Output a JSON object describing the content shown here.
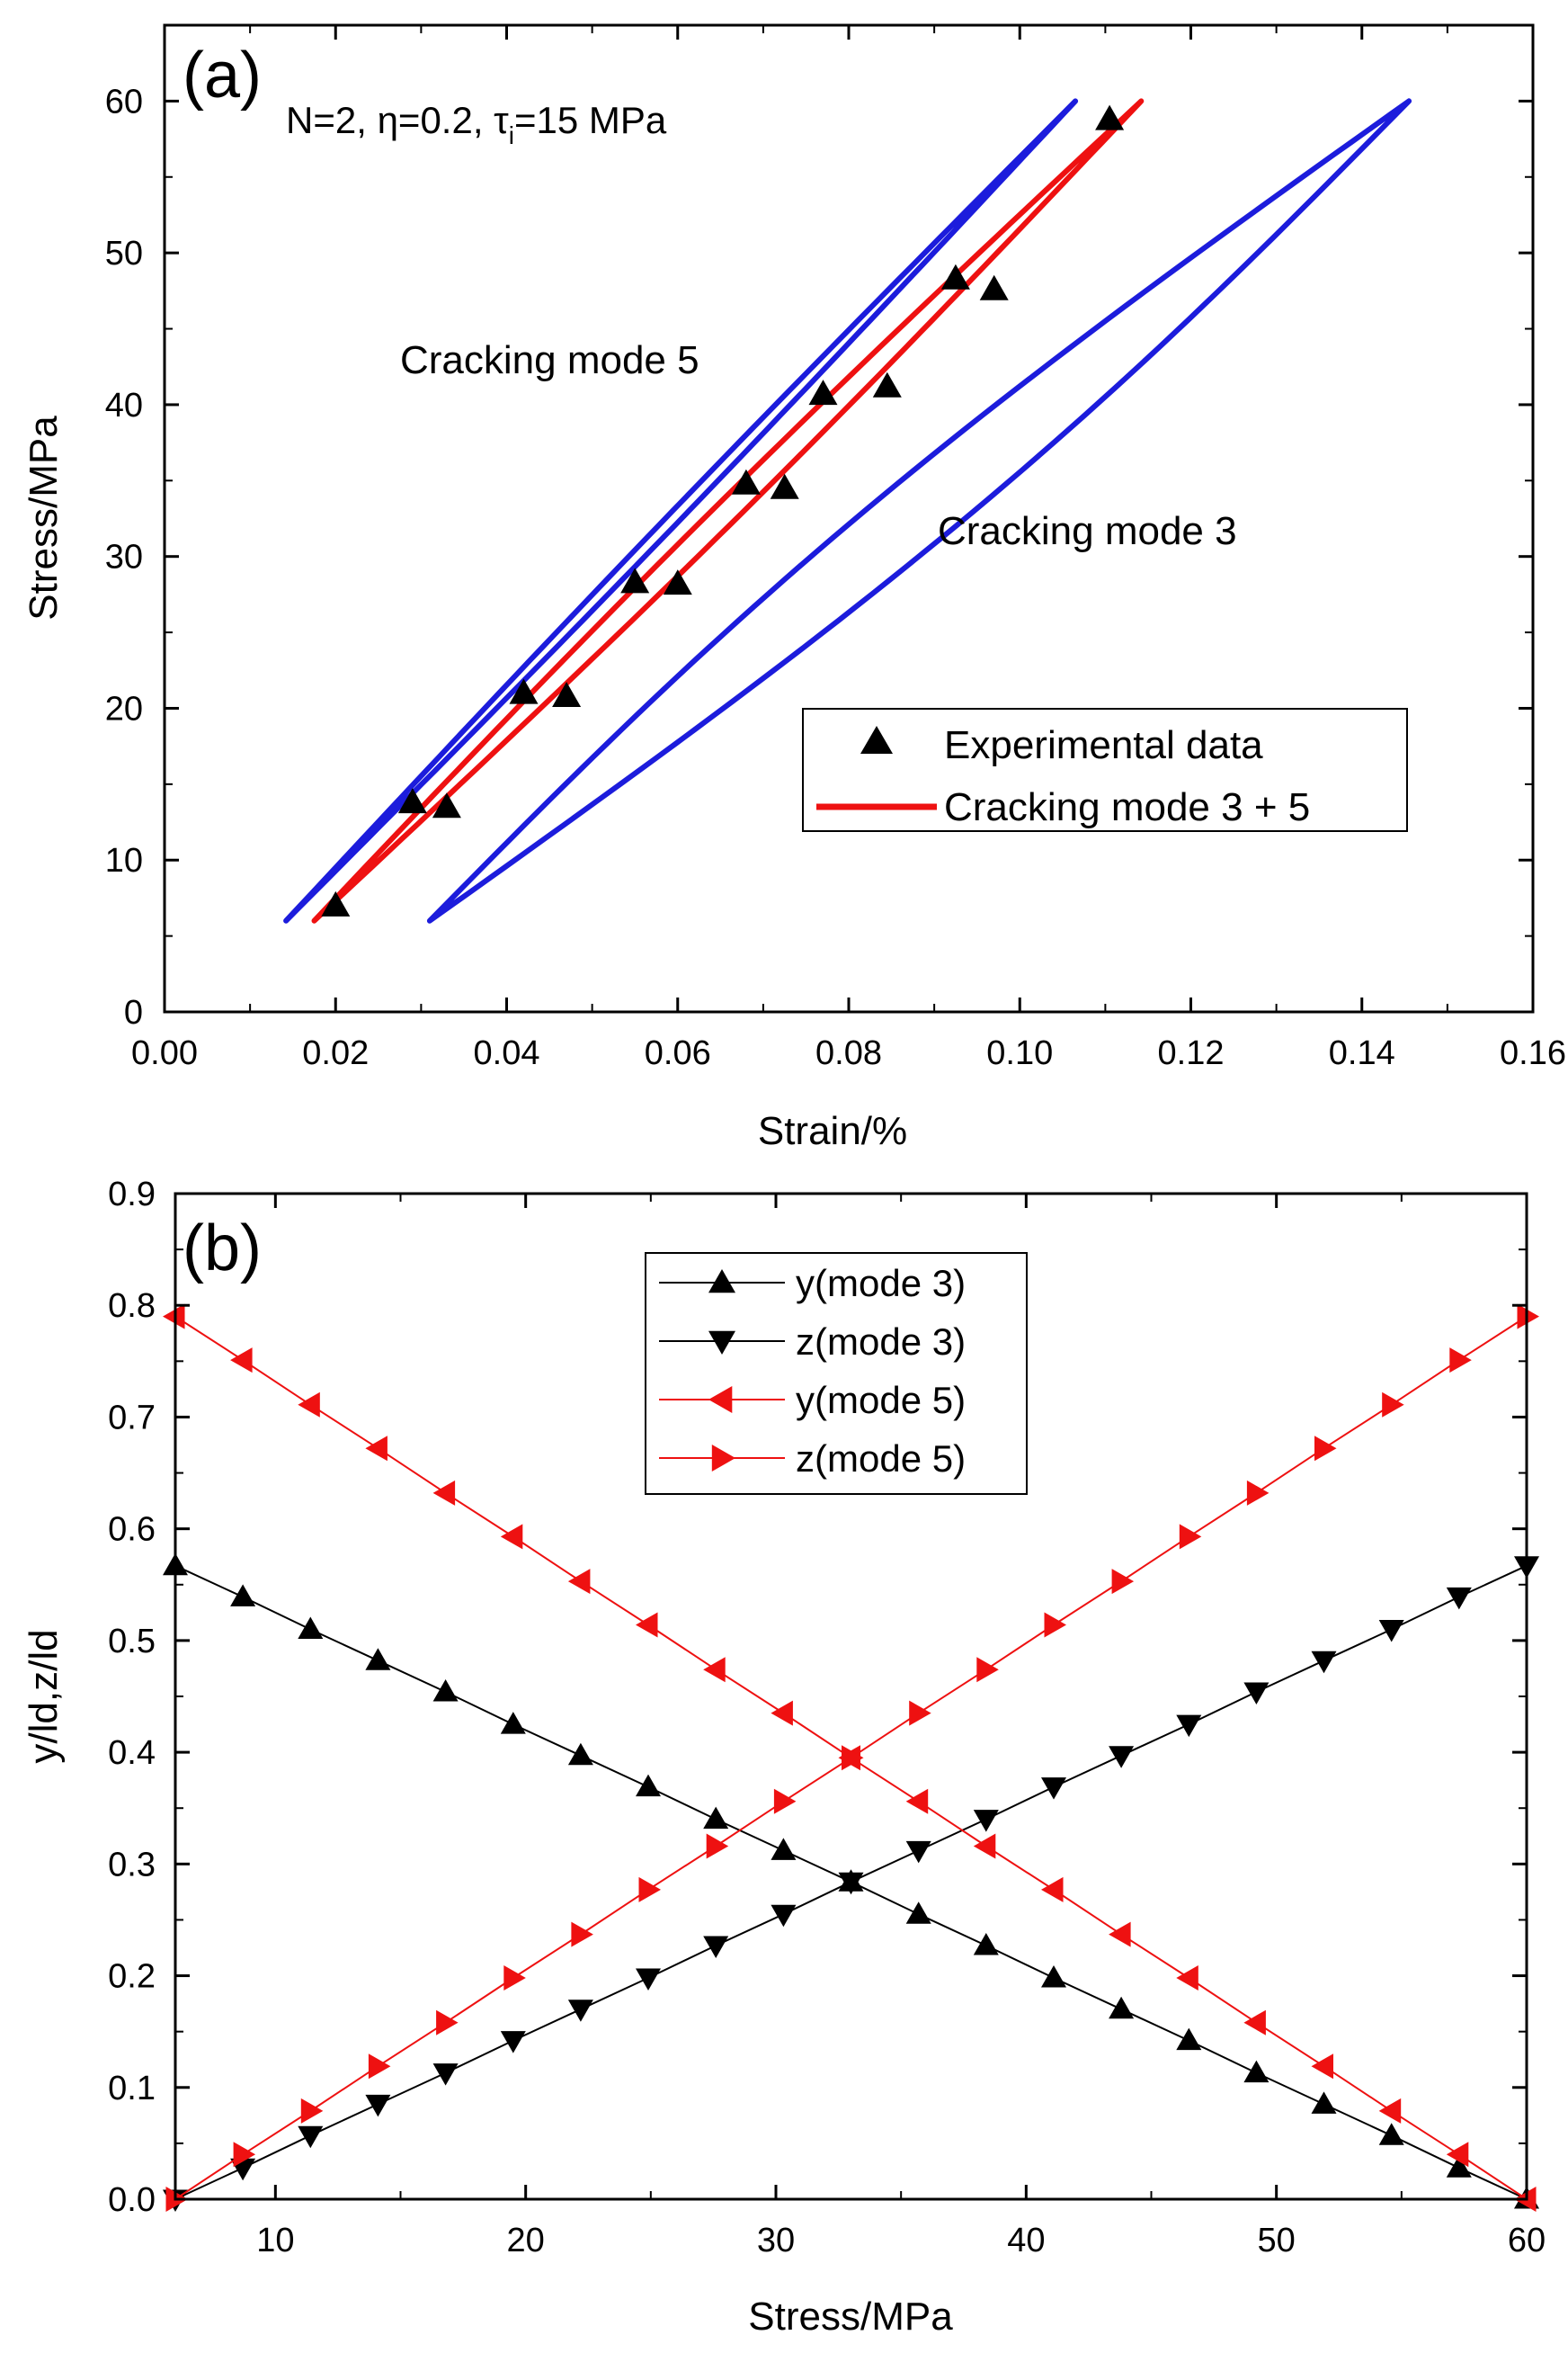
{
  "colors": {
    "blue": "#1c1cdc",
    "red": "#ee1111",
    "black": "#000000"
  },
  "chart_data": [
    {
      "type": "line",
      "panel_label": "(a)",
      "title_prefix": "N=2, ",
      "title_eta": "η=0.2, ",
      "title_tau": "τ",
      "title_tau_sub": "i",
      "title_suffix": "=15 MPa",
      "xlabel": "Strain/%",
      "ylabel": "Stress/MPa",
      "xlim": [
        0,
        0.16
      ],
      "ylim": [
        0,
        65
      ],
      "xticks": [
        0.0,
        0.02,
        0.04,
        0.06,
        0.08,
        0.1,
        0.12,
        0.14,
        0.16
      ],
      "xtick_labels": [
        "0.00",
        "0.02",
        "0.04",
        "0.06",
        "0.08",
        "0.10",
        "0.12",
        "0.14",
        "0.16"
      ],
      "yticks": [
        0,
        10,
        20,
        30,
        40,
        50,
        60
      ],
      "ytick_labels": [
        "0",
        "10",
        "20",
        "30",
        "40",
        "50",
        "60"
      ],
      "annotations": [
        "Cracking mode 5",
        "Cracking mode 3"
      ],
      "legend": [
        "Experimental data",
        "Cracking mode 3 + 5"
      ],
      "series": [
        {
          "name": "Cracking mode 5",
          "color": "blue",
          "loop": {
            "min_stress": 6,
            "max_stress": 60,
            "strain_at_min": 0.0142,
            "strain_at_max": 0.1065,
            "max_width": 0.0019
          }
        },
        {
          "name": "Cracking mode 3",
          "color": "blue",
          "loop": {
            "min_stress": 6,
            "max_stress": 60,
            "strain_at_min": 0.031,
            "strain_at_max": 0.1455,
            "max_width": 0.0128
          }
        },
        {
          "name": "Cracking mode 3 + 5",
          "color": "red",
          "loop": {
            "min_stress": 6,
            "max_stress": 60,
            "strain_at_min": 0.0175,
            "strain_at_max": 0.1142,
            "max_width": 0.0038
          }
        },
        {
          "name": "Experimental data",
          "color": "black",
          "x": [
            0.02,
            0.029,
            0.033,
            0.042,
            0.047,
            0.055,
            0.06,
            0.068,
            0.0725,
            0.077,
            0.0845,
            0.0925,
            0.097,
            0.1105
          ],
          "y": [
            7.0,
            13.8,
            13.5,
            21.0,
            20.8,
            28.3,
            28.2,
            34.8,
            34.5,
            40.7,
            41.2,
            48.3,
            47.6,
            58.8
          ]
        }
      ]
    },
    {
      "type": "line",
      "panel_label": "(b)",
      "xlabel": "Stress/MPa",
      "ylabel": "y/ld,z/ld",
      "xlim": [
        6,
        60
      ],
      "ylim": [
        0,
        0.9
      ],
      "xticks": [
        10,
        20,
        30,
        40,
        50,
        60
      ],
      "xtick_labels": [
        "10",
        "20",
        "30",
        "40",
        "50",
        "60"
      ],
      "yticks": [
        0.0,
        0.1,
        0.2,
        0.3,
        0.4,
        0.5,
        0.6,
        0.7,
        0.8,
        0.9
      ],
      "ytick_labels": [
        "0.0",
        "0.1",
        "0.2",
        "0.3",
        "0.4",
        "0.5",
        "0.6",
        "0.7",
        "0.8",
        "0.9"
      ],
      "x": [
        6.0,
        8.7,
        11.4,
        14.1,
        16.8,
        19.5,
        22.2,
        24.9,
        27.6,
        30.3,
        33.0,
        35.7,
        38.4,
        41.1,
        43.8,
        46.5,
        49.2,
        51.9,
        54.6,
        57.3,
        60.0
      ],
      "series": [
        {
          "name": "y(mode 3)",
          "color": "black",
          "marker": "triangle-up",
          "values": [
            0.567,
            0.539,
            0.51,
            0.482,
            0.454,
            0.425,
            0.397,
            0.369,
            0.34,
            0.312,
            0.284,
            0.255,
            0.227,
            0.198,
            0.17,
            0.142,
            0.113,
            0.085,
            0.057,
            0.028,
            0.0
          ]
        },
        {
          "name": "z(mode 3)",
          "color": "black",
          "marker": "triangle-down",
          "values": [
            0.0,
            0.028,
            0.057,
            0.085,
            0.113,
            0.142,
            0.17,
            0.198,
            0.227,
            0.255,
            0.284,
            0.312,
            0.34,
            0.369,
            0.397,
            0.425,
            0.454,
            0.482,
            0.51,
            0.539,
            0.567
          ]
        },
        {
          "name": "y(mode 5)",
          "color": "red",
          "marker": "triangle-left",
          "values": [
            0.79,
            0.751,
            0.711,
            0.672,
            0.632,
            0.593,
            0.553,
            0.514,
            0.474,
            0.435,
            0.395,
            0.356,
            0.316,
            0.277,
            0.237,
            0.198,
            0.158,
            0.119,
            0.079,
            0.04,
            0.0
          ]
        },
        {
          "name": "z(mode 5)",
          "color": "red",
          "marker": "triangle-right",
          "values": [
            0.0,
            0.04,
            0.079,
            0.119,
            0.158,
            0.198,
            0.237,
            0.277,
            0.316,
            0.356,
            0.395,
            0.435,
            0.474,
            0.514,
            0.553,
            0.593,
            0.632,
            0.672,
            0.711,
            0.751,
            0.79
          ]
        }
      ]
    }
  ]
}
